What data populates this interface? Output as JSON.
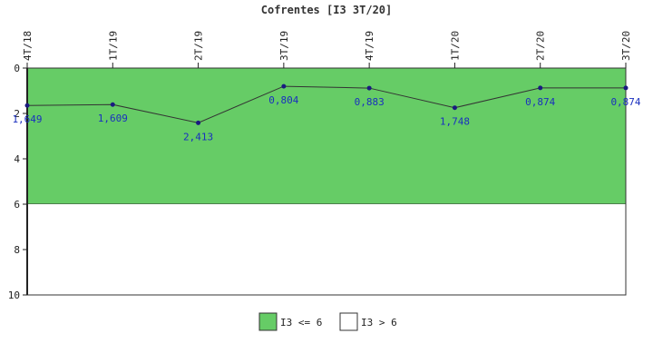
{
  "chart_data": {
    "type": "line",
    "title": "Cofrentes [I3 3T/20]",
    "xlabel": "",
    "ylabel": "",
    "categories": [
      "4T/18",
      "1T/19",
      "2T/19",
      "3T/19",
      "4T/19",
      "1T/20",
      "2T/20",
      "3T/20"
    ],
    "series": [
      {
        "name": "",
        "values": [
          1.649,
          1.609,
          2.413,
          0.804,
          0.883,
          1.748,
          0.874,
          0.874
        ],
        "labels": [
          "1,649",
          "1,609",
          "2,413",
          "0,804",
          "0,883",
          "1,748",
          "0,874",
          "0,874"
        ],
        "line_color": "#333333",
        "marker_color": "#1a1a80"
      }
    ],
    "ylim": [
      0,
      10
    ],
    "y_inverted": true,
    "yticks": [
      0,
      2,
      4,
      6,
      8,
      10
    ],
    "grid": false,
    "bands": [
      {
        "name": "I3 <= 6",
        "from": 0,
        "to": 6,
        "color": "#66cc66"
      },
      {
        "name": "I3 > 6",
        "from": 6,
        "to": 10,
        "color": "#ffffff"
      }
    ],
    "legend": {
      "placement": "bottom-center",
      "entries": [
        {
          "label": "I3 <= 6",
          "color": "#66cc66"
        },
        {
          "label": "I3 > 6",
          "color": "#ffffff"
        }
      ]
    }
  }
}
